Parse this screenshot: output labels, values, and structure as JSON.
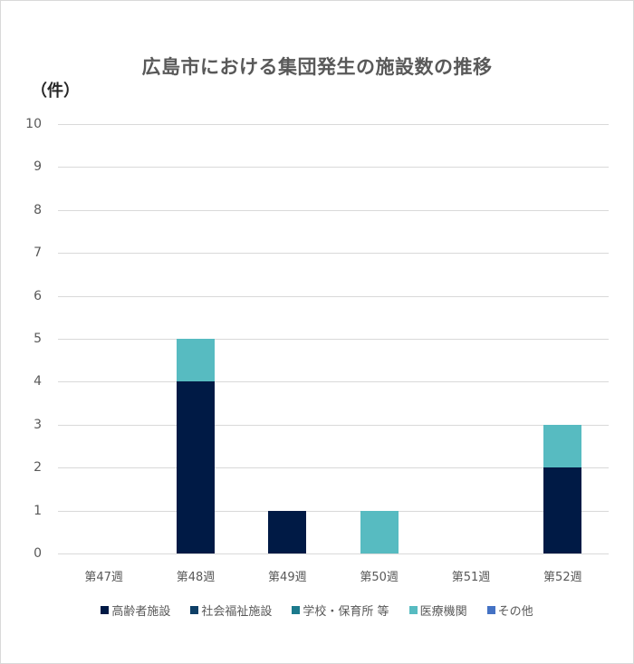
{
  "chart_data": {
    "type": "bar",
    "stacked": true,
    "title": "広島市における集団発生の施設数の推移",
    "ylabel": "（件）",
    "xlabel": "",
    "ylim": [
      0,
      10
    ],
    "yticks": [
      0,
      1,
      2,
      3,
      4,
      5,
      6,
      7,
      8,
      9,
      10
    ],
    "grid": true,
    "legend_position": "bottom",
    "categories": [
      "第47週",
      "第48週",
      "第49週",
      "第50週",
      "第51週",
      "第52週"
    ],
    "series": [
      {
        "name": "高齢者施設",
        "color": "#001a45",
        "values": [
          0,
          4,
          1,
          0,
          0,
          2
        ]
      },
      {
        "name": "社会福祉施設",
        "color": "#0e3f66",
        "values": [
          0,
          0,
          0,
          0,
          0,
          0
        ]
      },
      {
        "name": "学校・保育所 等",
        "color": "#1c7a8c",
        "values": [
          0,
          0,
          0,
          0,
          0,
          0
        ]
      },
      {
        "name": "医療機関",
        "color": "#57bbc1",
        "values": [
          0,
          1,
          0,
          1,
          0,
          1
        ]
      },
      {
        "name": "その他",
        "color": "#4472c4",
        "values": [
          0,
          0,
          0,
          0,
          0,
          0
        ]
      }
    ]
  }
}
